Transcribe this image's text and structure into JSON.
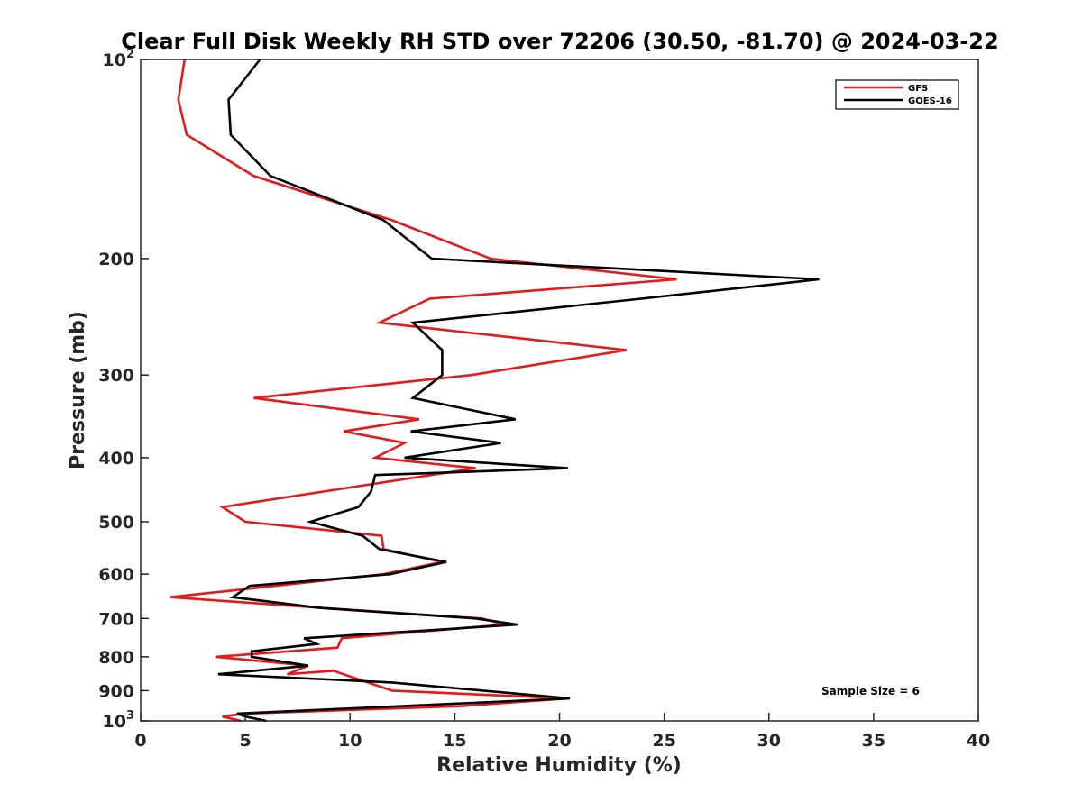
{
  "chart_data": {
    "type": "line",
    "title": "Clear Full Disk Weekly RH STD over 72206 (30.50, -81.70) @ 2024-03-22",
    "xlabel": "Relative Humidity (%)",
    "ylabel": "Pressure (mb)",
    "xlim": [
      0,
      40
    ],
    "ylim": [
      100,
      1000
    ],
    "y_scale": "log",
    "y_inverted": true,
    "xticks": [
      0,
      5,
      10,
      15,
      20,
      25,
      30,
      35,
      40
    ],
    "xtick_labels": [
      "0",
      "5",
      "10",
      "15",
      "20",
      "25",
      "30",
      "35",
      "40"
    ],
    "yticks": [
      {
        "value": 100,
        "base": "10",
        "exp": "2"
      },
      {
        "value": 200,
        "label": "200"
      },
      {
        "value": 300,
        "label": "300"
      },
      {
        "value": 400,
        "label": "400"
      },
      {
        "value": 500,
        "label": "500"
      },
      {
        "value": 600,
        "label": "600"
      },
      {
        "value": 700,
        "label": "700"
      },
      {
        "value": 800,
        "label": "800"
      },
      {
        "value": 900,
        "label": "900"
      },
      {
        "value": 1000,
        "base": "10",
        "exp": "3"
      }
    ],
    "grid": false,
    "legend_position": "top-right",
    "annotation": "Sample Size = 6",
    "series": [
      {
        "name": "GFS",
        "color": "#e41a1c",
        "points": [
          [
            2.1,
            100
          ],
          [
            1.8,
            115
          ],
          [
            2.2,
            130
          ],
          [
            5.4,
            150
          ],
          [
            12.0,
            175
          ],
          [
            16.7,
            200
          ],
          [
            25.6,
            215
          ],
          [
            13.8,
            230
          ],
          [
            11.4,
            250
          ],
          [
            23.2,
            275
          ],
          [
            15.8,
            300
          ],
          [
            5.4,
            325
          ],
          [
            13.3,
            350
          ],
          [
            9.7,
            365
          ],
          [
            12.6,
            380
          ],
          [
            11.2,
            400
          ],
          [
            16.0,
            415
          ],
          [
            3.9,
            475
          ],
          [
            5.0,
            500
          ],
          [
            11.5,
            525
          ],
          [
            11.6,
            550
          ],
          [
            14.4,
            575
          ],
          [
            11.6,
            600
          ],
          [
            1.4,
            650
          ],
          [
            8.7,
            675
          ],
          [
            16.3,
            700
          ],
          [
            17.4,
            715
          ],
          [
            9.6,
            750
          ],
          [
            9.4,
            775
          ],
          [
            3.6,
            800
          ],
          [
            8.0,
            825
          ],
          [
            7.0,
            850
          ],
          [
            9.2,
            840
          ],
          [
            12.0,
            900
          ],
          [
            20.4,
            925
          ],
          [
            15.3,
            950
          ],
          [
            5.0,
            975
          ],
          [
            3.9,
            985
          ],
          [
            4.8,
            1000
          ]
        ]
      },
      {
        "name": "GOES-16",
        "color": "#000000",
        "points": [
          [
            5.7,
            100
          ],
          [
            4.2,
            115
          ],
          [
            4.3,
            130
          ],
          [
            6.2,
            150
          ],
          [
            11.6,
            175
          ],
          [
            13.9,
            200
          ],
          [
            32.4,
            215
          ],
          [
            23.9,
            230
          ],
          [
            13.0,
            250
          ],
          [
            14.4,
            275
          ],
          [
            14.4,
            300
          ],
          [
            13.0,
            325
          ],
          [
            17.9,
            350
          ],
          [
            12.9,
            365
          ],
          [
            17.2,
            380
          ],
          [
            12.6,
            400
          ],
          [
            20.4,
            415
          ],
          [
            11.2,
            425
          ],
          [
            11.0,
            450
          ],
          [
            10.4,
            475
          ],
          [
            8.1,
            500
          ],
          [
            10.6,
            525
          ],
          [
            11.4,
            550
          ],
          [
            14.6,
            575
          ],
          [
            11.9,
            600
          ],
          [
            5.2,
            625
          ],
          [
            4.4,
            650
          ],
          [
            8.6,
            675
          ],
          [
            16.0,
            700
          ],
          [
            18.0,
            715
          ],
          [
            7.8,
            750
          ],
          [
            8.4,
            765
          ],
          [
            5.3,
            785
          ],
          [
            5.3,
            800
          ],
          [
            8.0,
            825
          ],
          [
            3.7,
            850
          ],
          [
            12.0,
            875
          ],
          [
            20.5,
            925
          ],
          [
            4.6,
            975
          ],
          [
            5.0,
            985
          ],
          [
            6.0,
            1000
          ]
        ]
      }
    ]
  }
}
